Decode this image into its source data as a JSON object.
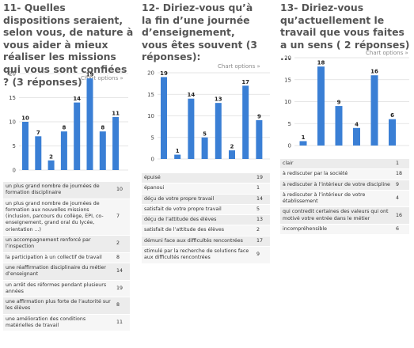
{
  "colors": {
    "bar": "#3a7fd5",
    "grid": "#dddddd",
    "title": "#555555"
  },
  "chart_options_label": "Chart options »",
  "chart_data": [
    {
      "type": "bar",
      "title": "11- Quelles dispositions seraient, selon vous, de nature à vous aider à mieux réaliser les missions qui vous sont confiées ? (3 réponses)",
      "ylim": [
        0,
        20
      ],
      "yticks": [
        0,
        5,
        10,
        15,
        20
      ],
      "grid": true,
      "categories": [
        "un plus grand nombre de journées de formation disciplinaire",
        "un plus grand nombre de journées de formation aux nouvelles missions (inclusion, parcours du collège, EPI, co-enseignement, grand oral du lycée, orientation ...)",
        "un accompagnement renforcé par l’inspection",
        "la participation à un collectif de travail",
        "une réaffirmation disciplinaire du métier d’enseignant",
        "un arrêt des réformes pendant plusieurs années",
        "une affirmation plus forte de l’autorité sur les élèves",
        "une amélioration des conditions matérielles de travail"
      ],
      "values": [
        10,
        7,
        2,
        8,
        14,
        19,
        8,
        11
      ]
    },
    {
      "type": "bar",
      "title": "12- Diriez-vous qu’à la fin d’une journée d’enseignement, vous êtes souvent (3 réponses):",
      "ylim": [
        0,
        20
      ],
      "yticks": [
        0,
        5,
        10,
        15,
        20
      ],
      "grid": true,
      "categories": [
        "épuisé",
        "épanoui",
        "déçu de votre propre travail",
        "satisfait de votre propre travail",
        "déçu de l’attitude des élèves",
        "satisfait de l’attitude des élèves",
        "démuni face aux difficultés rencontrées",
        "stimulé par la recherche de solutions face aux difficultés rencontrées"
      ],
      "values": [
        19,
        1,
        14,
        5,
        13,
        2,
        17,
        9
      ]
    },
    {
      "type": "bar",
      "title": "13- Diriez-vous qu’actuellement le travail que vous faites a un sens ( 2 réponses) ...",
      "ylim": [
        0,
        20
      ],
      "yticks": [
        0,
        5,
        10,
        15,
        20
      ],
      "grid": true,
      "categories": [
        "clair",
        "à rediscuter par la société",
        "à rediscuter à l’intérieur de votre discipline",
        "à rediscuter à l’intérieur de votre établissement",
        "qui contredit certaines des valeurs qui ont motivé votre entrée dans le métier",
        "incompréhensible"
      ],
      "values": [
        1,
        18,
        9,
        4,
        16,
        6
      ]
    }
  ]
}
